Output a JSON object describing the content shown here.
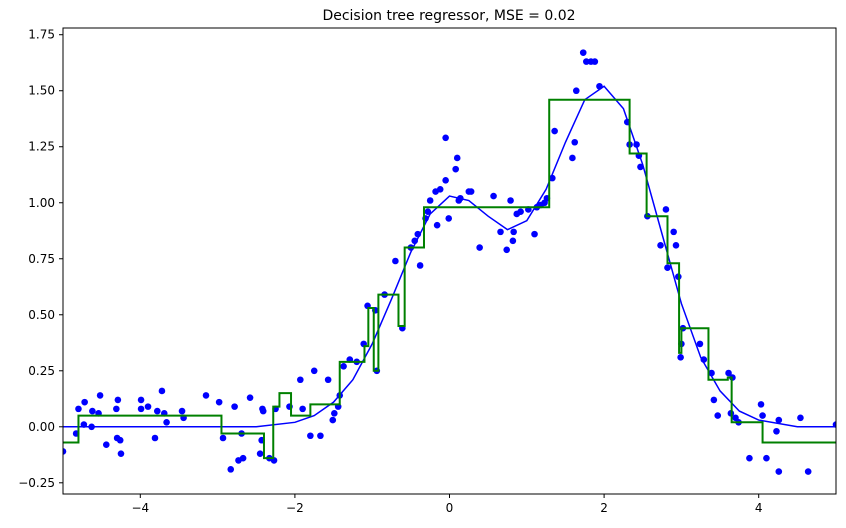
{
  "chart_data": {
    "type": "scatter",
    "title": "Decision tree regressor, MSE = 0.02",
    "xlim": [
      -5,
      5
    ],
    "xticks": [
      {
        "value": -4,
        "label": "−4"
      },
      {
        "value": -2,
        "label": "−2"
      },
      0,
      2,
      4
    ],
    "ylim": [
      -0.3,
      1.78
    ],
    "yticks": [
      {
        "value": -0.25,
        "label": "−0.25"
      },
      {
        "value": 0,
        "label": "0.00"
      },
      0.25,
      {
        "value": 0.5,
        "label": "0.50"
      },
      0.75,
      {
        "value": 1,
        "label": "1.00"
      },
      1.25,
      {
        "value": 1.5,
        "label": "1.50"
      },
      1.75
    ],
    "series": [
      {
        "type": "scatter",
        "color": "#0000ff",
        "x": [
          -5.0,
          -4.83,
          -4.8,
          -4.73,
          -4.72,
          -4.63,
          -4.62,
          -4.54,
          -4.52,
          -4.44,
          -4.31,
          -4.29,
          -4.3,
          -4.26,
          -4.25,
          -3.99,
          -3.99,
          -3.9,
          -3.81,
          -3.78,
          -3.72,
          -3.69,
          -3.66,
          -3.46,
          -3.44,
          -3.15,
          -2.98,
          -2.93,
          -2.83,
          -2.78,
          -2.73,
          -2.67,
          -2.69,
          -2.58,
          -2.43,
          -2.42,
          -2.41,
          -2.45,
          -2.33,
          -2.27,
          -2.25,
          -2.07,
          -1.93,
          -1.9,
          -1.8,
          -1.75,
          -1.67,
          -1.57,
          -1.51,
          -1.49,
          -1.44,
          -1.42,
          -1.37,
          -1.29,
          -1.2,
          -1.11,
          -1.06,
          -0.94,
          -0.96,
          -0.84,
          -0.7,
          -0.61,
          -0.5,
          -0.45,
          -0.41,
          -0.38,
          -0.31,
          -0.28,
          -0.25,
          -0.18,
          -0.16,
          -0.12,
          -0.05,
          -0.05,
          -0.01,
          0.08,
          0.1,
          0.12,
          0.14,
          0.25,
          0.28,
          0.39,
          0.57,
          0.66,
          0.74,
          0.79,
          0.82,
          0.83,
          0.87,
          0.92,
          1.02,
          1.1,
          1.13,
          1.18,
          1.23,
          1.26,
          1.33,
          1.36,
          1.59,
          1.62,
          1.64,
          1.73,
          1.77,
          1.83,
          1.88,
          1.94,
          2.3,
          2.33,
          2.42,
          2.45,
          2.47,
          2.56,
          2.8,
          2.73,
          2.82,
          2.9,
          2.93,
          2.96,
          2.99,
          3.0,
          3.02,
          3.24,
          3.29,
          3.39,
          3.42,
          3.47,
          3.61,
          3.66,
          3.64,
          3.7,
          3.74,
          3.88,
          4.03,
          4.05,
          4.1,
          4.23,
          4.26,
          4.26,
          4.54,
          4.64,
          5.0
        ],
        "values": [
          -0.11,
          -0.03,
          0.08,
          0.01,
          0.11,
          0.0,
          0.07,
          0.06,
          0.14,
          -0.08,
          0.08,
          0.12,
          -0.05,
          -0.06,
          -0.12,
          0.12,
          0.08,
          0.09,
          -0.05,
          0.07,
          0.16,
          0.06,
          0.02,
          0.07,
          0.04,
          0.14,
          0.11,
          -0.05,
          -0.19,
          0.09,
          -0.15,
          -0.14,
          -0.03,
          0.13,
          -0.06,
          0.08,
          0.07,
          -0.12,
          -0.14,
          -0.15,
          0.08,
          0.09,
          0.21,
          0.08,
          -0.04,
          0.25,
          -0.04,
          0.21,
          0.03,
          0.06,
          0.09,
          0.14,
          0.27,
          0.3,
          0.29,
          0.37,
          0.54,
          0.25,
          0.52,
          0.59,
          0.74,
          0.44,
          0.8,
          0.83,
          0.86,
          0.72,
          0.93,
          0.96,
          1.01,
          1.05,
          0.9,
          1.06,
          1.1,
          1.29,
          0.93,
          1.15,
          1.2,
          1.01,
          1.02,
          1.05,
          1.05,
          0.8,
          1.03,
          0.87,
          0.79,
          1.01,
          0.83,
          0.87,
          0.95,
          0.96,
          0.97,
          0.86,
          0.98,
          0.99,
          1.0,
          1.02,
          1.11,
          1.32,
          1.2,
          1.27,
          1.5,
          1.67,
          1.63,
          1.63,
          1.63,
          1.52,
          1.36,
          1.26,
          1.26,
          1.21,
          1.16,
          0.94,
          0.97,
          0.81,
          0.71,
          0.87,
          0.81,
          0.67,
          0.31,
          0.37,
          0.44,
          0.37,
          0.3,
          0.24,
          0.12,
          0.05,
          0.24,
          0.22,
          0.06,
          0.04,
          0.02,
          -0.14,
          0.1,
          0.05,
          -0.14,
          -0.02,
          0.03,
          -0.2,
          0.04,
          -0.2,
          0.01
        ]
      },
      {
        "type": "line",
        "color": "#0000ff",
        "x": [
          -5,
          -3,
          -2.5,
          -2,
          -1.75,
          -1.5,
          -1.25,
          -1,
          -0.75,
          -0.5,
          -0.25,
          0,
          0.25,
          0.5,
          0.75,
          1,
          1.25,
          1.5,
          1.75,
          2,
          2.25,
          2.5,
          2.75,
          3,
          3.25,
          3.5,
          3.75,
          4,
          4.5,
          5
        ],
        "values": [
          0,
          0,
          0,
          0.02,
          0.05,
          0.11,
          0.21,
          0.37,
          0.57,
          0.78,
          0.95,
          1.03,
          1.01,
          0.94,
          0.88,
          0.92,
          1.06,
          1.27,
          1.46,
          1.52,
          1.42,
          1.17,
          0.86,
          0.55,
          0.31,
          0.16,
          0.07,
          0.03,
          0,
          0
        ]
      },
      {
        "type": "step",
        "color": "#008000",
        "x": [
          -5,
          -4.8,
          -2.95,
          -2.4,
          -2.28,
          -2.2,
          -2.05,
          -1.8,
          -1.42,
          -1.1,
          -1.05,
          -0.98,
          -0.92,
          -0.66,
          -0.58,
          -0.33,
          1.29,
          2.33,
          2.55,
          2.82,
          2.97,
          3.0,
          3.35,
          3.6,
          3.65,
          4.05,
          5
        ],
        "values": [
          -0.07,
          0.05,
          -0.03,
          -0.14,
          0.09,
          0.15,
          0.05,
          0.1,
          0.29,
          0.36,
          0.53,
          0.25,
          0.59,
          0.45,
          0.8,
          0.98,
          1.46,
          1.22,
          0.94,
          0.73,
          0.33,
          0.44,
          0.21,
          0.22,
          0.02,
          -0.07,
          -0.07
        ]
      }
    ]
  }
}
